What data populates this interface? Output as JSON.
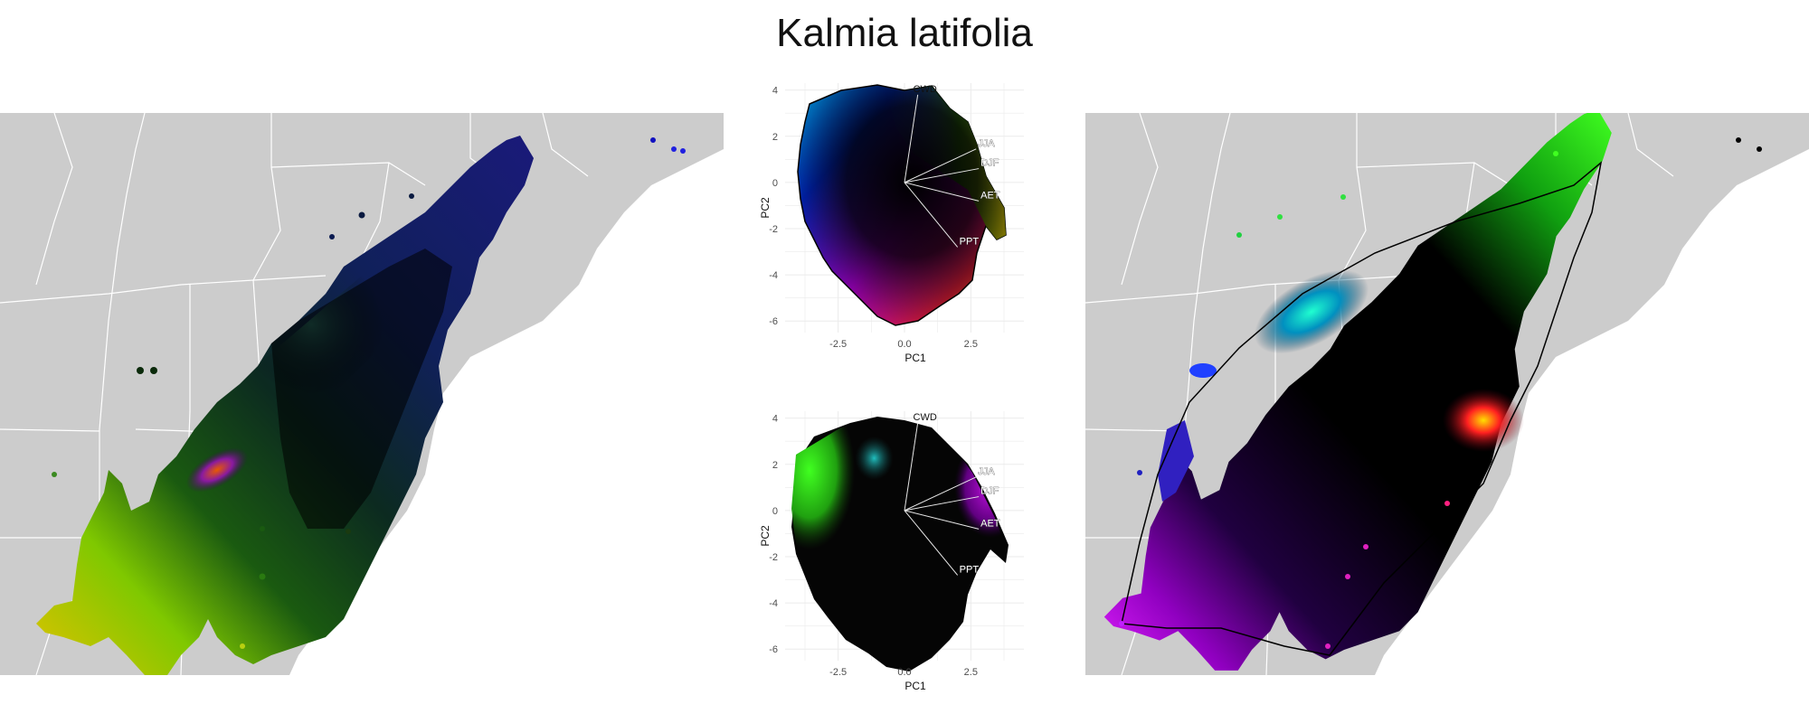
{
  "title": "Kalmia latifolia",
  "colors": {
    "land": "#cccccc",
    "borders": "#ffffff",
    "grid": "#ebebeb",
    "loading_line": "#e8e8e8",
    "hull": "#000000"
  },
  "chart_data": [
    {
      "type": "scatter",
      "panel": "pca-top",
      "xlabel": "PC1",
      "ylabel": "PC2",
      "xticks": [
        -2.5,
        0.0,
        2.5
      ],
      "yticks": [
        4,
        2,
        0,
        -2,
        -4,
        -6
      ],
      "xlim": [
        -4.5,
        4.5
      ],
      "ylim": [
        -6.5,
        4.3
      ],
      "grid": true,
      "loadings": [
        {
          "label": "CWD",
          "x": 0.5,
          "y": 3.8
        },
        {
          "label": "JJA",
          "x": 2.7,
          "y": 1.45
        },
        {
          "label": "DJF",
          "x": 2.8,
          "y": 0.6
        },
        {
          "label": "AET",
          "x": 2.8,
          "y": -0.8
        },
        {
          "label": "PPT",
          "x": 2.0,
          "y": -2.8
        }
      ]
    },
    {
      "type": "scatter",
      "panel": "pca-bottom",
      "xlabel": "PC1",
      "ylabel": "PC2",
      "xticks": [
        -2.5,
        0.0,
        2.5
      ],
      "yticks": [
        4,
        2,
        0,
        -2,
        -4,
        -6
      ],
      "xlim": [
        -4.5,
        4.5
      ],
      "ylim": [
        -6.5,
        4.3
      ],
      "grid": true,
      "loadings": [
        {
          "label": "CWD",
          "x": 0.5,
          "y": 3.8
        },
        {
          "label": "JJA",
          "x": 2.7,
          "y": 1.45
        },
        {
          "label": "DJF",
          "x": 2.8,
          "y": 0.6
        },
        {
          "label": "AET",
          "x": 2.8,
          "y": -0.8
        },
        {
          "label": "PPT",
          "x": 2.0,
          "y": -2.8
        }
      ]
    }
  ]
}
